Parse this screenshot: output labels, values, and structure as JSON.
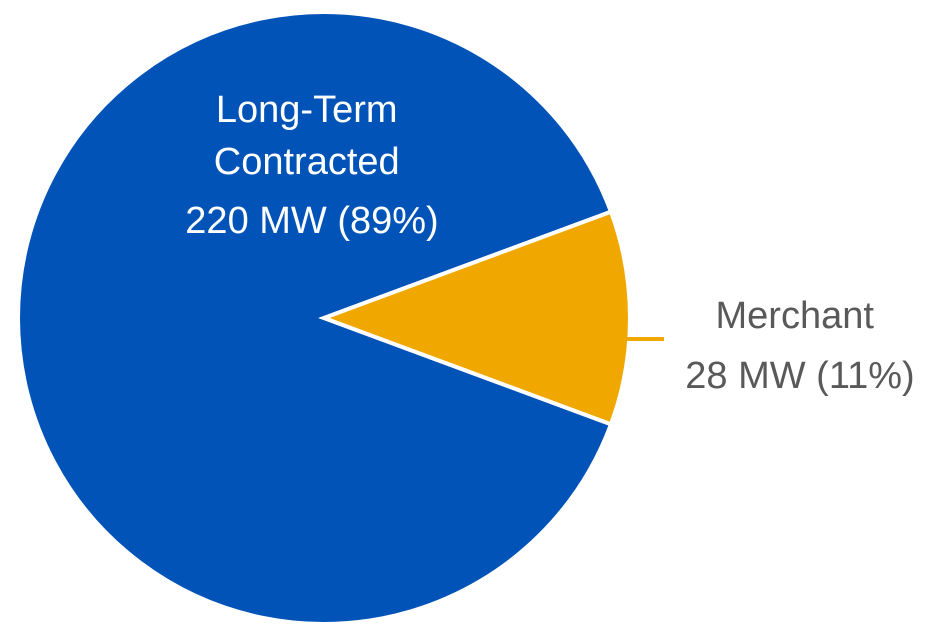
{
  "chart_data": {
    "type": "pie",
    "title": "",
    "slices": [
      {
        "name_lines": [
          "Long-Term",
          "Contracted"
        ],
        "value_label": "220 MW (89%)",
        "value": 220,
        "percent": 89,
        "color": "#0153b7"
      },
      {
        "name_lines": [
          "Merchant"
        ],
        "value_label": "28 MW (11%)",
        "value": 28,
        "percent": 11,
        "color": "#f0a800"
      }
    ],
    "legend": "none",
    "label_placement": [
      "inside",
      "outside-right"
    ],
    "leader_line_color": "#f0a800"
  }
}
